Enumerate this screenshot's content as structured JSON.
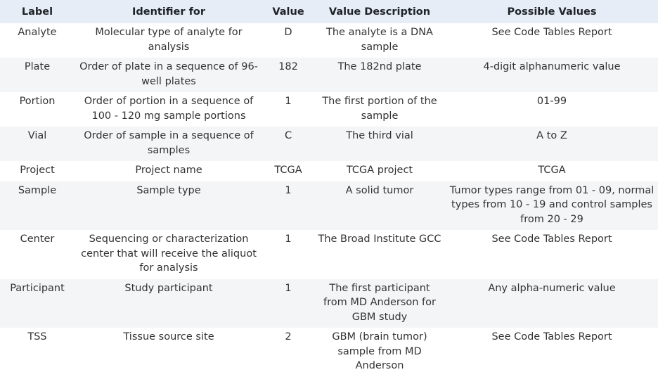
{
  "table": {
    "headers": [
      "Label",
      "Identifier for",
      "Value",
      "Value Description",
      "Possible Values"
    ],
    "rows": [
      [
        "Analyte",
        "Molecular type of analyte for analysis",
        "D",
        "The analyte is a DNA sample",
        "See Code Tables Report"
      ],
      [
        "Plate",
        "Order of plate in a sequence of 96-well plates",
        "182",
        "The 182nd plate",
        "4-digit alphanumeric value"
      ],
      [
        "Portion",
        "Order of portion in a sequence of 100 - 120 mg sample portions",
        "1",
        "The first portion of the sample",
        "01-99"
      ],
      [
        "Vial",
        "Order of sample in a sequence of samples",
        "C",
        "The third vial",
        "A to Z"
      ],
      [
        "Project",
        "Project name",
        "TCGA",
        "TCGA project",
        "TCGA"
      ],
      [
        "Sample",
        "Sample type",
        "1",
        "A solid tumor",
        "Tumor types range from 01 - 09, normal types from 10 - 19 and control samples from 20 - 29"
      ],
      [
        "Center",
        "Sequencing or characterization center that will receive the aliquot for analysis",
        "1",
        "The Broad Institute GCC",
        "See Code Tables Report"
      ],
      [
        "Participant",
        "Study participant",
        "1",
        "The first participant from MD Anderson for GBM study",
        "Any alpha-numeric value"
      ],
      [
        "TSS",
        "Tissue source site",
        "2",
        "GBM (brain tumor) sample from MD Anderson",
        "See Code Tables Report"
      ]
    ]
  },
  "colors": {
    "header_bg": "#e6edf6",
    "stripe_bg": "#f4f5f7"
  }
}
